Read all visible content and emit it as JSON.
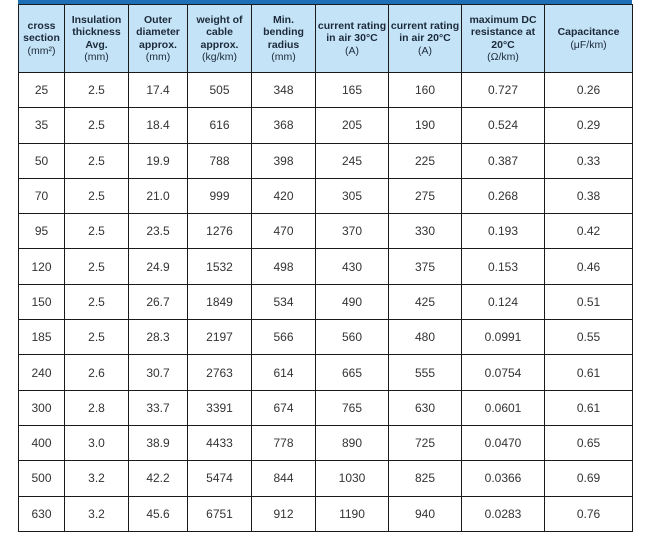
{
  "headers": [
    {
      "title": "cross section",
      "unit": "(mm²)"
    },
    {
      "title": "Insulation thickness Avg.",
      "unit": "(mm)"
    },
    {
      "title": "Outer diameter approx.",
      "unit": "(mm)"
    },
    {
      "title": "weight of cable approx.",
      "unit": "(kg/km)"
    },
    {
      "title": "Min. bending radius",
      "unit": "(mm)"
    },
    {
      "title": "current rating in air 30°C",
      "unit": "(A)"
    },
    {
      "title": "current rating in air 20°C",
      "unit": "(A)"
    },
    {
      "title": "maximum DC resistance at 20°C",
      "unit": "(Ω/km)"
    },
    {
      "title": "Capacitance",
      "unit": "(μF/km)"
    }
  ],
  "rows": [
    [
      "25",
      "2.5",
      "17.4",
      "505",
      "348",
      "165",
      "160",
      "0.727",
      "0.26"
    ],
    [
      "35",
      "2.5",
      "18.4",
      "616",
      "368",
      "205",
      "190",
      "0.524",
      "0.29"
    ],
    [
      "50",
      "2.5",
      "19.9",
      "788",
      "398",
      "245",
      "225",
      "0.387",
      "0.33"
    ],
    [
      "70",
      "2.5",
      "21.0",
      "999",
      "420",
      "305",
      "275",
      "0.268",
      "0.38"
    ],
    [
      "95",
      "2.5",
      "23.5",
      "1276",
      "470",
      "370",
      "330",
      "0.193",
      "0.42"
    ],
    [
      "120",
      "2.5",
      "24.9",
      "1532",
      "498",
      "430",
      "375",
      "0.153",
      "0.46"
    ],
    [
      "150",
      "2.5",
      "26.7",
      "1849",
      "534",
      "490",
      "425",
      "0.124",
      "0.51"
    ],
    [
      "185",
      "2.5",
      "28.3",
      "2197",
      "566",
      "560",
      "480",
      "0.0991",
      "0.55"
    ],
    [
      "240",
      "2.6",
      "30.7",
      "2763",
      "614",
      "665",
      "555",
      "0.0754",
      "0.61"
    ],
    [
      "300",
      "2.8",
      "33.7",
      "3391",
      "674",
      "765",
      "630",
      "0.0601",
      "0.61"
    ],
    [
      "400",
      "3.0",
      "38.9",
      "4433",
      "778",
      "890",
      "725",
      "0.0470",
      "0.65"
    ],
    [
      "500",
      "3.2",
      "42.2",
      "5474",
      "844",
      "1030",
      "825",
      "0.0366",
      "0.69"
    ],
    [
      "630",
      "3.2",
      "45.6",
      "6751",
      "912",
      "1190",
      "940",
      "0.0283",
      "0.76"
    ]
  ],
  "colors": {
    "header_bg": "#c5e3f6",
    "accent": "#1d6fb8",
    "border": "#1a1a1a"
  }
}
